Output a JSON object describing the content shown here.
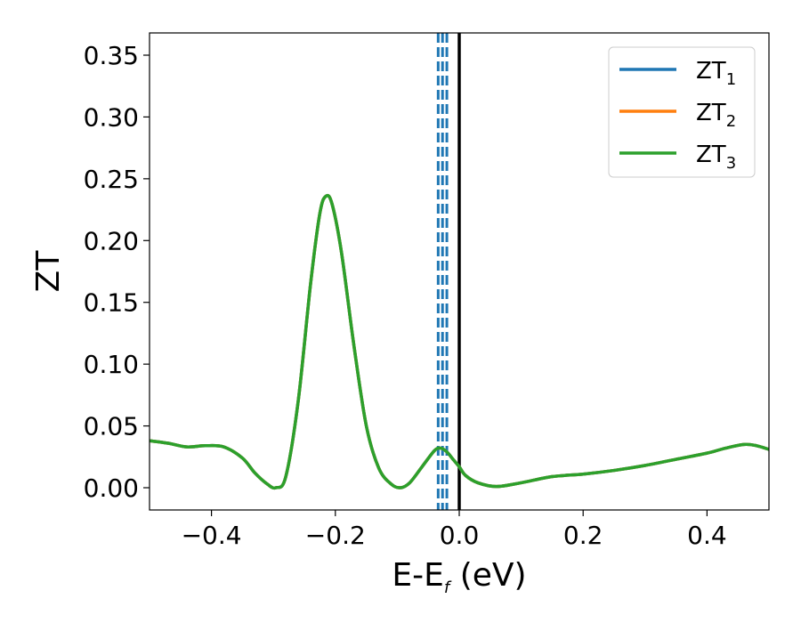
{
  "chart_data": {
    "type": "line",
    "xlabel": {
      "main": "E-E",
      "sub": "f",
      "rest": " (eV)"
    },
    "ylabel": "ZT",
    "xlim": [
      -0.5,
      0.5
    ],
    "ylim": [
      -0.018,
      0.368
    ],
    "xticks": [
      -0.4,
      -0.2,
      0.0,
      0.2,
      0.4
    ],
    "xtick_labels": [
      "−0.4",
      "−0.2",
      "0.0",
      "0.2",
      "0.4"
    ],
    "yticks": [
      0.0,
      0.05,
      0.1,
      0.15,
      0.2,
      0.25,
      0.3,
      0.35
    ],
    "ytick_labels": [
      "0.00",
      "0.05",
      "0.10",
      "0.15",
      "0.20",
      "0.25",
      "0.30",
      "0.35"
    ],
    "grid": false,
    "legend_position": "top-right",
    "vertical_lines": [
      {
        "x": -0.034,
        "style": "dashed",
        "color": "#1f77b4"
      },
      {
        "x": -0.027,
        "style": "dashed",
        "color": "#1f77b4"
      },
      {
        "x": -0.02,
        "style": "dashed",
        "color": "#1f77b4"
      },
      {
        "x": 0.0,
        "style": "solid",
        "color": "#000000"
      }
    ],
    "x": [
      -0.5,
      -0.47,
      -0.44,
      -0.41,
      -0.38,
      -0.35,
      -0.33,
      -0.31,
      -0.296,
      -0.28,
      -0.26,
      -0.24,
      -0.225,
      -0.215,
      -0.205,
      -0.19,
      -0.17,
      -0.15,
      -0.13,
      -0.11,
      -0.095,
      -0.08,
      -0.06,
      -0.04,
      -0.03,
      -0.02,
      -0.01,
      0.0,
      0.01,
      0.03,
      0.06,
      0.1,
      0.15,
      0.2,
      0.25,
      0.3,
      0.35,
      0.4,
      0.43,
      0.46,
      0.48,
      0.5
    ],
    "series": [
      {
        "name": {
          "main": "ZT",
          "sub": "1"
        },
        "color": "#1f77b4",
        "y": [
          0.038,
          0.036,
          0.033,
          0.034,
          0.033,
          0.024,
          0.012,
          0.003,
          0.0,
          0.009,
          0.07,
          0.165,
          0.222,
          0.236,
          0.229,
          0.19,
          0.115,
          0.05,
          0.016,
          0.003,
          0.0,
          0.004,
          0.017,
          0.03,
          0.032,
          0.029,
          0.023,
          0.017,
          0.01,
          0.004,
          0.001,
          0.004,
          0.009,
          0.011,
          0.014,
          0.018,
          0.023,
          0.028,
          0.032,
          0.035,
          0.034,
          0.031
        ]
      },
      {
        "name": {
          "main": "ZT",
          "sub": "2"
        },
        "color": "#ff7f0e",
        "y": [
          0.038,
          0.036,
          0.033,
          0.034,
          0.033,
          0.024,
          0.012,
          0.003,
          0.0,
          0.009,
          0.07,
          0.165,
          0.222,
          0.236,
          0.229,
          0.19,
          0.115,
          0.05,
          0.016,
          0.003,
          0.0,
          0.004,
          0.017,
          0.03,
          0.032,
          0.029,
          0.023,
          0.017,
          0.01,
          0.004,
          0.001,
          0.004,
          0.009,
          0.011,
          0.014,
          0.018,
          0.023,
          0.028,
          0.032,
          0.035,
          0.034,
          0.031
        ]
      },
      {
        "name": {
          "main": "ZT",
          "sub": "3"
        },
        "color": "#2ca02c",
        "y": [
          0.038,
          0.036,
          0.033,
          0.034,
          0.033,
          0.024,
          0.012,
          0.003,
          0.0,
          0.009,
          0.07,
          0.165,
          0.222,
          0.236,
          0.229,
          0.19,
          0.115,
          0.05,
          0.016,
          0.003,
          0.0,
          0.004,
          0.017,
          0.03,
          0.032,
          0.029,
          0.023,
          0.017,
          0.01,
          0.004,
          0.001,
          0.004,
          0.009,
          0.011,
          0.014,
          0.018,
          0.023,
          0.028,
          0.032,
          0.035,
          0.034,
          0.031
        ]
      }
    ]
  }
}
